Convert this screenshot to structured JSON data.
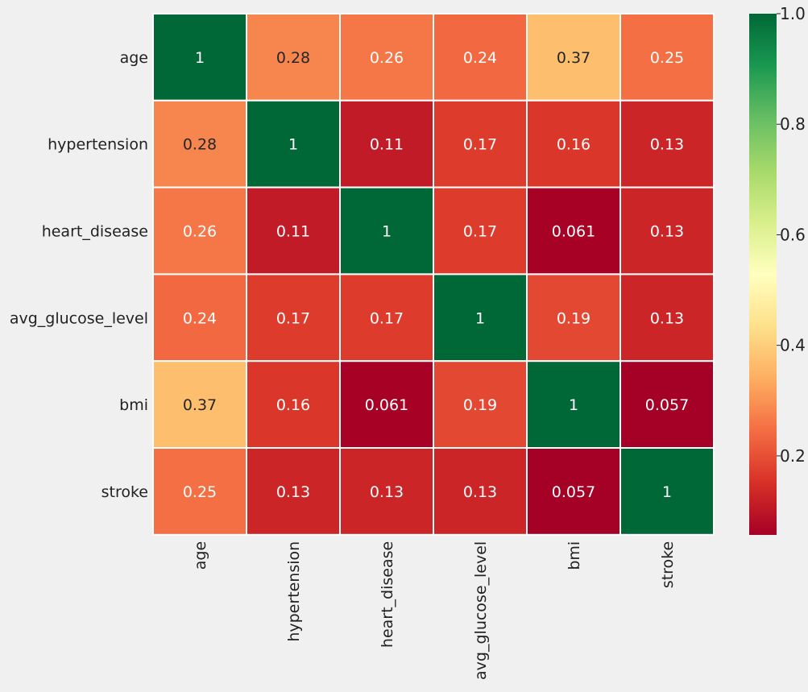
{
  "chart_data": {
    "type": "heatmap",
    "title": "",
    "xlabel": "",
    "ylabel": "",
    "rows": [
      "age",
      "hypertension",
      "heart_disease",
      "avg_glucose_level",
      "bmi",
      "stroke"
    ],
    "columns": [
      "age",
      "hypertension",
      "heart_disease",
      "avg_glucose_level",
      "bmi",
      "stroke"
    ],
    "values": [
      [
        1,
        0.28,
        0.26,
        0.24,
        0.37,
        0.25
      ],
      [
        0.28,
        1,
        0.11,
        0.17,
        0.16,
        0.13
      ],
      [
        0.26,
        0.11,
        1,
        0.17,
        0.061,
        0.13
      ],
      [
        0.24,
        0.17,
        0.17,
        1,
        0.19,
        0.13
      ],
      [
        0.37,
        0.16,
        0.061,
        0.19,
        1,
        0.057
      ],
      [
        0.25,
        0.13,
        0.13,
        0.13,
        0.057,
        1
      ]
    ],
    "annotations": [
      [
        "1",
        "0.28",
        "0.26",
        "0.24",
        "0.37",
        "0.25"
      ],
      [
        "0.28",
        "1",
        "0.11",
        "0.17",
        "0.16",
        "0.13"
      ],
      [
        "0.26",
        "0.11",
        "1",
        "0.17",
        "0.061",
        "0.13"
      ],
      [
        "0.24",
        "0.17",
        "0.17",
        "1",
        "0.19",
        "0.13"
      ],
      [
        "0.37",
        "0.16",
        "0.061",
        "0.19",
        "1",
        "0.057"
      ],
      [
        "0.25",
        "0.13",
        "0.13",
        "0.13",
        "0.057",
        "1"
      ]
    ],
    "colormap": "RdYlGn",
    "vmin": 0.057,
    "vmax": 1.0,
    "colorbar": {
      "ticks": [
        0.2,
        0.4,
        0.6,
        0.8,
        1.0
      ],
      "tick_labels": [
        "0.2",
        "0.4",
        "0.6",
        "0.8",
        "1.0"
      ]
    },
    "grid": true
  }
}
